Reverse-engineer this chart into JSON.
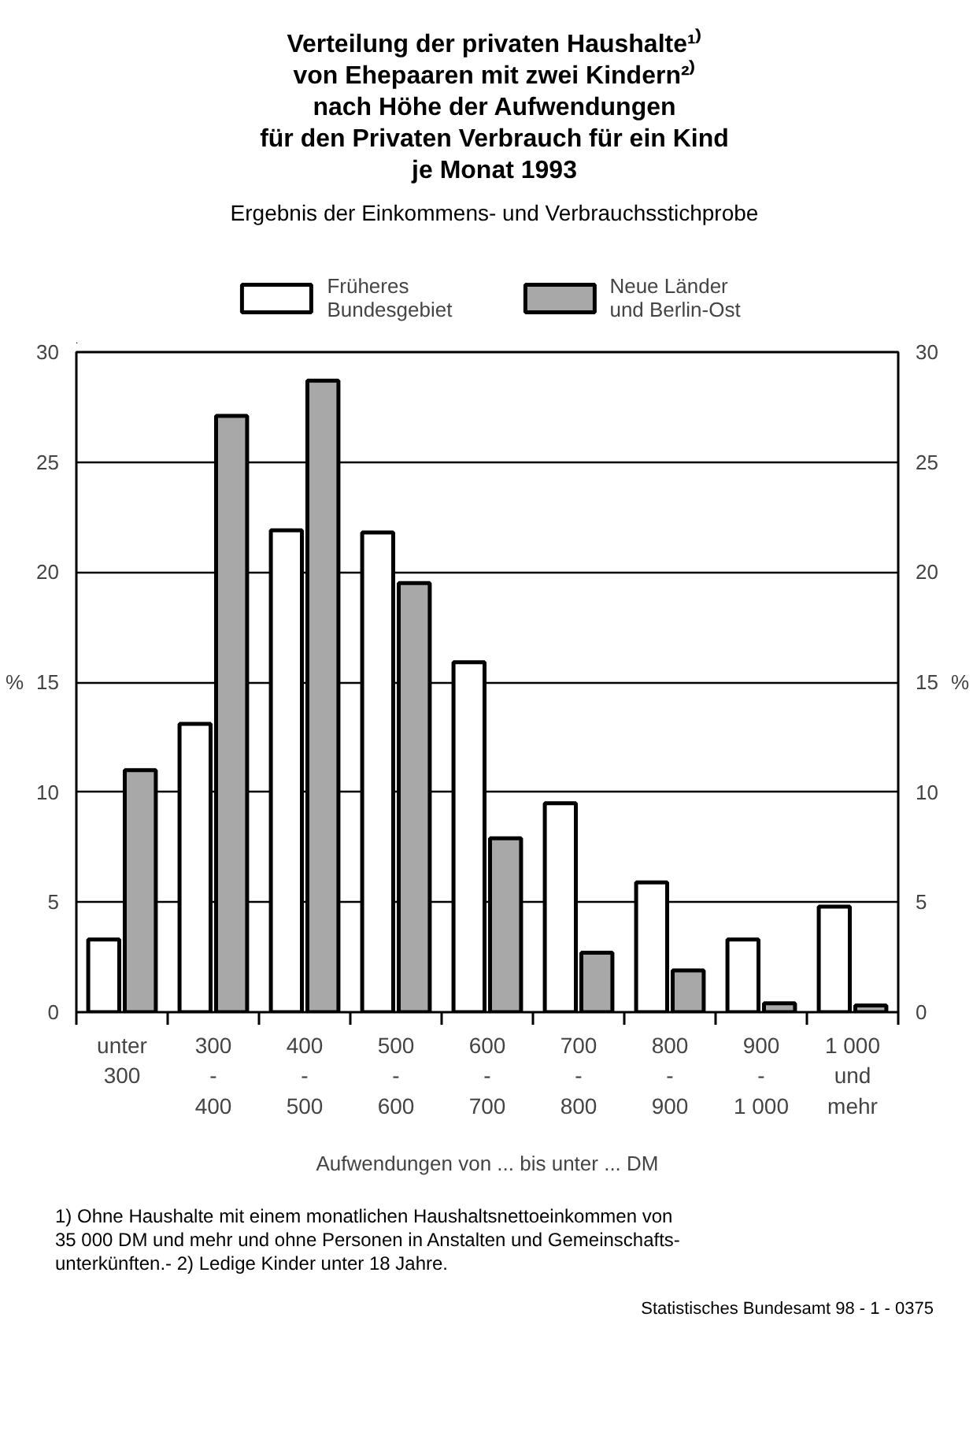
{
  "chart_data": {
    "type": "bar",
    "title": "Verteilung der privaten Haushalte¹⁾\nvon Ehepaaren mit zwei Kindern²⁾\nnach Höhe der Aufwendungen\nfür den Privaten Verbrauch für ein Kind\nje Monat 1993",
    "subtitle": "Ergebnis der Einkommens- und Verbrauchsstichprobe",
    "xlabel": "Aufwendungen von ... bis unter ... DM",
    "ylabel": "%",
    "y2label": "%",
    "categories": [
      "unter\n300",
      "300\n-\n400",
      "400\n-\n500",
      "500\n-\n600",
      "600\n-\n700",
      "700\n-\n800",
      "800\n-\n900",
      "900\n-\n1 000",
      "1 000\nund\nmehr"
    ],
    "series": [
      {
        "name": "Früheres\nBundesgebiet",
        "color": "#ffffff",
        "values": [
          3.3,
          13.1,
          21.9,
          21.8,
          15.9,
          9.5,
          5.9,
          3.3,
          4.8
        ]
      },
      {
        "name": "Neue Länder\nund Berlin-Ost",
        "color": "#a8a8a8",
        "values": [
          11.0,
          27.1,
          28.7,
          19.5,
          7.9,
          2.7,
          1.9,
          0.4,
          0.3
        ]
      }
    ],
    "ylim": [
      0,
      30
    ],
    "yticks": [
      0,
      5,
      10,
      15,
      20,
      25,
      30
    ],
    "y2lim": [
      0,
      30
    ],
    "y2ticks": [
      0,
      5,
      10,
      15,
      20,
      25,
      30
    ],
    "grid": "y",
    "legend": "top",
    "annotations": [
      "1) Ohne Haushalte mit einem monatlichen Haushaltsnettoeinkommen von\n35 000 DM und mehr und ohne Personen in Anstalten und Gemeinschafts-\nunterkünften.- 2) Ledige Kinder unter 18 Jahre.",
      "Statistisches Bundesamt 98 - 1 - 0375"
    ]
  }
}
